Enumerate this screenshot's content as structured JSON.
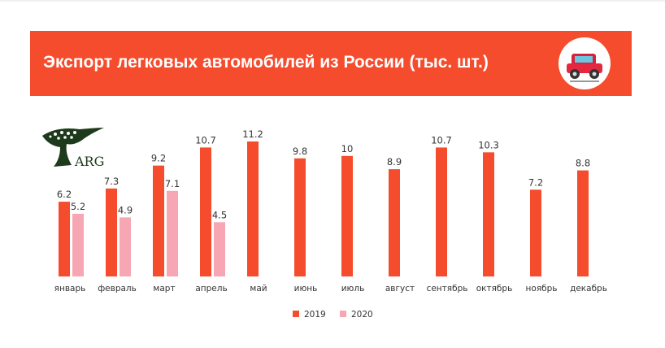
{
  "header": {
    "title": "Экспорт легковых автомобилей из России (тыс. шт.)",
    "icon": "car-icon"
  },
  "logo": {
    "text": "ARG",
    "icon": "tree-logo"
  },
  "colors": {
    "banner": "#f44c2c",
    "series_2019": "#f44c2c",
    "series_2020": "#f7a6b3"
  },
  "chart_data": {
    "type": "bar",
    "categories": [
      "январь",
      "февраль",
      "март",
      "апрель",
      "май",
      "июнь",
      "июль",
      "август",
      "сентябрь",
      "октябрь",
      "ноябрь",
      "декабрь"
    ],
    "series": [
      {
        "name": "2019",
        "values": [
          6.2,
          7.3,
          9.2,
          10.7,
          11.2,
          9.8,
          10,
          8.9,
          10.7,
          10.3,
          7.2,
          8.8
        ],
        "labels": [
          "6.2",
          "7.3",
          "9.2",
          "10.7",
          "11.2",
          "9.8",
          "10",
          "8.9",
          "10.7",
          "10.3",
          "7.2",
          "8.8"
        ]
      },
      {
        "name": "2020",
        "values": [
          5.2,
          4.9,
          7.1,
          4.5,
          null,
          null,
          null,
          null,
          null,
          null,
          null,
          null
        ],
        "labels": [
          "5.2",
          "4.9",
          "7.1",
          "4.5",
          "",
          "",
          "",
          "",
          "",
          "",
          "",
          ""
        ]
      }
    ],
    "title": "Экспорт легковых автомобилей из России (тыс. шт.)",
    "xlabel": "",
    "ylabel": "",
    "ylim": [
      0,
      11.2
    ],
    "grid": false,
    "legend": "bottom"
  }
}
